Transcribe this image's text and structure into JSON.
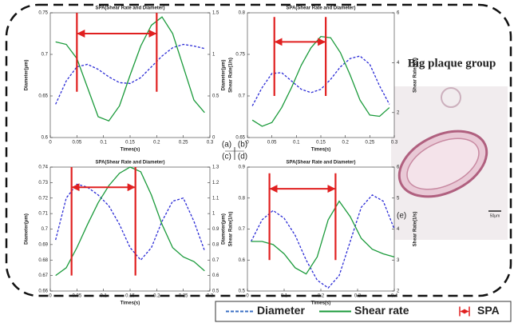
{
  "chart_data": [
    {
      "type": "line",
      "label": "(a)",
      "title": "SPA(Shear Rate and Diameter)",
      "xlabel": "Times(s)",
      "ylabel": "Diameter(μm)",
      "y2label": "Shear Rate(1/s)",
      "x": [
        0.01,
        0.03,
        0.05,
        0.07,
        0.09,
        0.11,
        0.13,
        0.15,
        0.17,
        0.19,
        0.21,
        0.23,
        0.25,
        0.27,
        0.29
      ],
      "series": [
        {
          "color": "#2b2bd6",
          "dashed": true,
          "values": [
            0.64,
            0.668,
            0.685,
            0.688,
            0.682,
            0.673,
            0.666,
            0.665,
            0.672,
            0.685,
            0.698,
            0.708,
            0.712,
            0.71,
            0.707
          ]
        },
        {
          "color": "#1a9a3a",
          "axis": "y2",
          "values": [
            1.15,
            1.12,
            0.95,
            0.6,
            0.25,
            0.2,
            0.38,
            0.75,
            1.1,
            1.35,
            1.45,
            1.25,
            0.85,
            0.45,
            0.3
          ]
        }
      ],
      "xlim": [
        0,
        0.3
      ],
      "xticks": [
        0,
        0.05,
        0.1,
        0.15,
        0.2,
        0.25,
        0.3
      ],
      "ylim": [
        0.6,
        0.75
      ],
      "yticks": [
        0.6,
        0.65,
        0.7,
        0.75
      ],
      "y2lim": [
        0,
        1.5
      ],
      "y2ticks": [
        0,
        0.5,
        1,
        1.5
      ],
      "spa": {
        "x": [
          0.05,
          0.2
        ],
        "y": 0.725,
        "y_range": [
          0.655,
          0.75
        ]
      }
    },
    {
      "type": "line",
      "label": "(b)",
      "title": "SPA(Shear Rate and Diameter)",
      "xlabel": "Times(s)",
      "ylabel": "Diameter(μm)",
      "y2label": "Shear Rate(1/s)",
      "x": [
        0.01,
        0.03,
        0.05,
        0.07,
        0.09,
        0.11,
        0.13,
        0.15,
        0.17,
        0.19,
        0.21,
        0.23,
        0.25,
        0.27,
        0.29
      ],
      "series": [
        {
          "color": "#2b2bd6",
          "dashed": true,
          "values": [
            0.688,
            0.71,
            0.727,
            0.728,
            0.718,
            0.708,
            0.704,
            0.708,
            0.72,
            0.735,
            0.745,
            0.748,
            0.738,
            0.712,
            0.69
          ]
        },
        {
          "color": "#1a9a3a",
          "axis": "y2",
          "values": [
            1.7,
            1.45,
            1.6,
            2.2,
            3,
            3.9,
            4.6,
            5.05,
            5,
            4.4,
            3.5,
            2.5,
            1.9,
            1.85,
            2.2
          ]
        }
      ],
      "xlim": [
        0,
        0.3
      ],
      "xticks": [
        0,
        0.05,
        0.1,
        0.15,
        0.2,
        0.25,
        0.3
      ],
      "ylim": [
        0.65,
        0.8
      ],
      "yticks": [
        0.65,
        0.7,
        0.75,
        0.8
      ],
      "y2lim": [
        1,
        6
      ],
      "y2ticks": [
        2,
        4,
        6
      ],
      "spa": {
        "x": [
          0.055,
          0.16
        ],
        "y": 0.765,
        "y_range": [
          0.7,
          0.795
        ]
      }
    },
    {
      "type": "line",
      "label": "(c)",
      "title": "SPA(Shear Rate and Diameter)",
      "xlabel": "Times(s)",
      "ylabel": "Diameter(μm)",
      "y2label": "Shear Rate(1/s)",
      "x": [
        0.01,
        0.03,
        0.05,
        0.07,
        0.09,
        0.11,
        0.13,
        0.15,
        0.17,
        0.19,
        0.21,
        0.23,
        0.25,
        0.27,
        0.29
      ],
      "series": [
        {
          "color": "#2b2bd6",
          "dashed": true,
          "values": [
            0.693,
            0.72,
            0.729,
            0.727,
            0.722,
            0.715,
            0.703,
            0.688,
            0.68,
            0.688,
            0.705,
            0.718,
            0.72,
            0.705,
            0.686
          ]
        },
        {
          "color": "#1a9a3a",
          "axis": "y2",
          "values": [
            0.6,
            0.65,
            0.78,
            0.93,
            1.07,
            1.18,
            1.26,
            1.3,
            1.27,
            1.12,
            0.93,
            0.78,
            0.72,
            0.69,
            0.63
          ]
        }
      ],
      "xlim": [
        0,
        0.3
      ],
      "xticks": [
        0,
        0.05,
        0.1,
        0.15,
        0.2,
        0.25,
        0.3
      ],
      "ylim": [
        0.66,
        0.74
      ],
      "yticks": [
        0.66,
        0.67,
        0.68,
        0.69,
        0.7,
        0.71,
        0.72,
        0.73,
        0.74
      ],
      "y2lim": [
        0.5,
        1.3
      ],
      "y2ticks": [
        0.5,
        0.6,
        0.7,
        0.8,
        0.9,
        1,
        1.1,
        1.2,
        1.3
      ],
      "spa": {
        "x": [
          0.04,
          0.16
        ],
        "y": 0.727,
        "y_range": [
          0.67,
          0.74
        ]
      }
    },
    {
      "type": "line",
      "label": "(d)",
      "title": "SPA(Shear Rate and Diameter)",
      "xlabel": "Times(s)",
      "ylabel": "Diameter(μm)",
      "y2label": "Shear Rate(1/s)",
      "x": [
        0.01,
        0.04,
        0.07,
        0.1,
        0.13,
        0.16,
        0.19,
        0.22,
        0.25,
        0.28,
        0.31,
        0.34,
        0.37,
        0.4
      ],
      "series": [
        {
          "color": "#2b2bd6",
          "dashed": true,
          "values": [
            0.66,
            0.73,
            0.76,
            0.735,
            0.68,
            0.6,
            0.535,
            0.51,
            0.55,
            0.66,
            0.77,
            0.81,
            0.79,
            0.7
          ]
        },
        {
          "color": "#1a9a3a",
          "axis": "y2",
          "values": [
            3.6,
            3.6,
            3.5,
            3.2,
            2.75,
            2.55,
            3.1,
            4.3,
            4.9,
            4.4,
            3.7,
            3.35,
            3.2,
            3.1
          ]
        }
      ],
      "xlim": [
        0,
        0.4
      ],
      "xticks": [
        0,
        0.1,
        0.2,
        0.3,
        0.4
      ],
      "ylim": [
        0.5,
        0.9
      ],
      "yticks": [
        0.5,
        0.6,
        0.7,
        0.8,
        0.9
      ],
      "y2lim": [
        2,
        6
      ],
      "y2ticks": [
        2,
        3,
        4,
        5,
        6
      ],
      "spa": {
        "x": [
          0.06,
          0.24
        ],
        "y": 0.83,
        "y_range": [
          0.6,
          0.88
        ]
      }
    }
  ],
  "image": {
    "heading": "Big plaque group",
    "label": "(e)",
    "scale": "50μm"
  },
  "legend": [
    {
      "label": "Diameter",
      "color": "#3a6fc4"
    },
    {
      "label": "Shear rate",
      "color": "#1a9a3a"
    },
    {
      "label": "SPA",
      "color": "#e02020"
    }
  ]
}
